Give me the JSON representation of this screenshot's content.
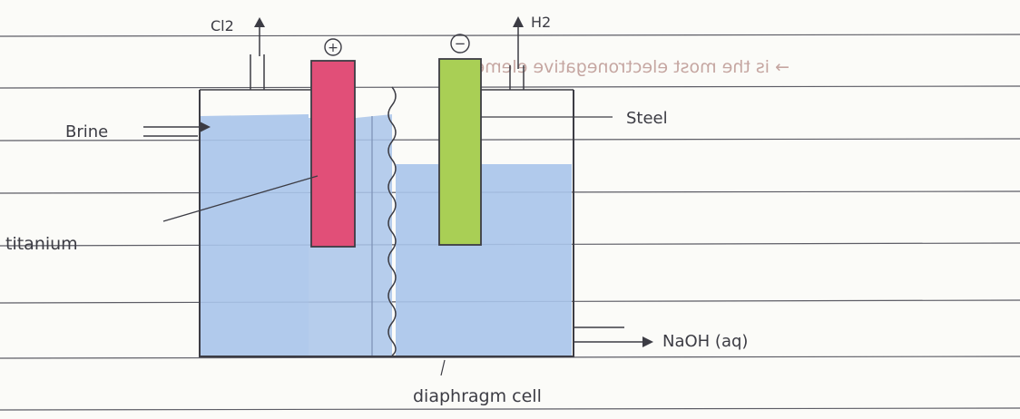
{
  "labels": {
    "cl2": "Cl2",
    "h2": "H2",
    "brine": "Brine",
    "titanium": "titanium",
    "steel": "Steel",
    "naoh": "NaOH (aq)",
    "caption": "diaphragm cell",
    "margin_note": "→ is the most electronegative element",
    "anode_sign": "+",
    "cathode_sign": "−"
  },
  "colors": {
    "paper": "#fbfbf8",
    "ruled_line": "#55555f",
    "brine_blue": "#a9c4ea",
    "titanium_red": "#e14f78",
    "steel_green": "#a9cf55",
    "ink": "#3c3c44",
    "note_ink": "#b48a85"
  }
}
